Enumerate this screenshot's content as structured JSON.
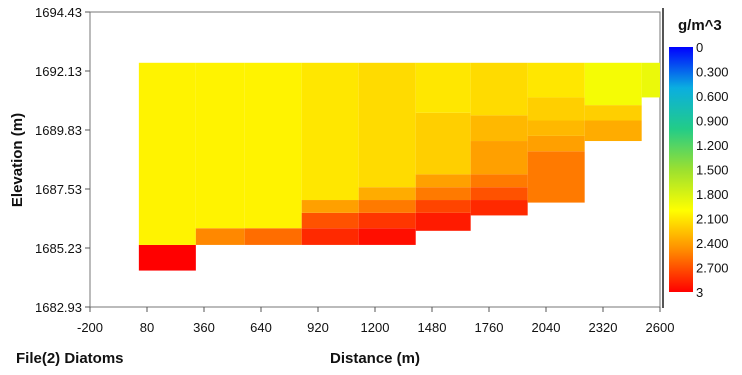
{
  "chart_data": {
    "type": "heatmap",
    "title": "",
    "xlabel": "Distance (m)",
    "ylabel": "Elevation (m)",
    "footer_label": "File(2) Diatoms",
    "xlim": [
      -200,
      2600
    ],
    "ylim": [
      1682.93,
      1694.43
    ],
    "x_ticks": [
      "-200",
      "80",
      "360",
      "640",
      "920",
      "1200",
      "1480",
      "1760",
      "2040",
      "2320",
      "2600"
    ],
    "y_ticks": [
      "1682.93",
      "1685.23",
      "1687.53",
      "1689.83",
      "1692.13",
      "1694.43"
    ],
    "colorbar": {
      "title": "g/m^3",
      "range": [
        0,
        3
      ],
      "ticks": [
        "0",
        "0.300",
        "0.600",
        "0.900",
        "1.200",
        "1.500",
        "1.800",
        "2.100",
        "2.400",
        "2.700",
        "3"
      ]
    },
    "cells": [
      {
        "x": [
          40,
          320
        ],
        "y": [
          1684.35,
          1685.35
        ],
        "value": 3.0
      },
      {
        "x": [
          40,
          320
        ],
        "y": [
          1685.35,
          1692.45
        ],
        "value": 2.05
      },
      {
        "x": [
          320,
          560
        ],
        "y": [
          1685.35,
          1686.0
        ],
        "value": 2.5
      },
      {
        "x": [
          320,
          560
        ],
        "y": [
          1686.0,
          1692.45
        ],
        "value": 2.05
      },
      {
        "x": [
          560,
          840
        ],
        "y": [
          1685.35,
          1686.0
        ],
        "value": 2.6
      },
      {
        "x": [
          560,
          840
        ],
        "y": [
          1686.0,
          1692.45
        ],
        "value": 2.05
      },
      {
        "x": [
          840,
          1120
        ],
        "y": [
          1685.35,
          1686.0
        ],
        "value": 2.85
      },
      {
        "x": [
          840,
          1120
        ],
        "y": [
          1686.0,
          1686.6
        ],
        "value": 2.7
      },
      {
        "x": [
          840,
          1120
        ],
        "y": [
          1686.6,
          1687.1
        ],
        "value": 2.4
      },
      {
        "x": [
          840,
          1120
        ],
        "y": [
          1687.1,
          1692.45
        ],
        "value": 2.1
      },
      {
        "x": [
          1120,
          1400
        ],
        "y": [
          1685.35,
          1686.0
        ],
        "value": 2.95
      },
      {
        "x": [
          1120,
          1400
        ],
        "y": [
          1686.0,
          1686.6
        ],
        "value": 2.8
      },
      {
        "x": [
          1120,
          1400
        ],
        "y": [
          1686.6,
          1687.1
        ],
        "value": 2.55
      },
      {
        "x": [
          1120,
          1400
        ],
        "y": [
          1687.1,
          1687.6
        ],
        "value": 2.35
      },
      {
        "x": [
          1120,
          1400
        ],
        "y": [
          1687.6,
          1692.45
        ],
        "value": 2.15
      },
      {
        "x": [
          1400,
          1670
        ],
        "y": [
          1685.9,
          1686.6
        ],
        "value": 2.9
      },
      {
        "x": [
          1400,
          1670
        ],
        "y": [
          1686.6,
          1687.1
        ],
        "value": 2.75
      },
      {
        "x": [
          1400,
          1670
        ],
        "y": [
          1687.1,
          1687.6
        ],
        "value": 2.55
      },
      {
        "x": [
          1400,
          1670
        ],
        "y": [
          1687.6,
          1688.1
        ],
        "value": 2.4
      },
      {
        "x": [
          1400,
          1670
        ],
        "y": [
          1688.1,
          1690.5
        ],
        "value": 2.2
      },
      {
        "x": [
          1400,
          1670
        ],
        "y": [
          1690.5,
          1692.45
        ],
        "value": 2.1
      },
      {
        "x": [
          1670,
          1950
        ],
        "y": [
          1686.5,
          1687.1
        ],
        "value": 2.85
      },
      {
        "x": [
          1670,
          1950
        ],
        "y": [
          1687.1,
          1687.6
        ],
        "value": 2.7
      },
      {
        "x": [
          1670,
          1950
        ],
        "y": [
          1687.6,
          1688.1
        ],
        "value": 2.55
      },
      {
        "x": [
          1670,
          1950
        ],
        "y": [
          1688.1,
          1689.4
        ],
        "value": 2.4
      },
      {
        "x": [
          1670,
          1950
        ],
        "y": [
          1689.4,
          1690.4
        ],
        "value": 2.3
      },
      {
        "x": [
          1670,
          1950
        ],
        "y": [
          1690.4,
          1692.45
        ],
        "value": 2.15
      },
      {
        "x": [
          1950,
          2230
        ],
        "y": [
          1687.0,
          1689.0
        ],
        "value": 2.55
      },
      {
        "x": [
          1950,
          2230
        ],
        "y": [
          1689.0,
          1689.6
        ],
        "value": 2.4
      },
      {
        "x": [
          1950,
          2230
        ],
        "y": [
          1689.6,
          1690.2
        ],
        "value": 2.3
      },
      {
        "x": [
          1950,
          2230
        ],
        "y": [
          1690.2,
          1691.1
        ],
        "value": 2.2
      },
      {
        "x": [
          1950,
          2230
        ],
        "y": [
          1691.1,
          1692.45
        ],
        "value": 2.1
      },
      {
        "x": [
          2230,
          2510
        ],
        "y": [
          1689.4,
          1690.2
        ],
        "value": 2.35
      },
      {
        "x": [
          2230,
          2510
        ],
        "y": [
          1690.2,
          1690.8
        ],
        "value": 2.2
      },
      {
        "x": [
          2230,
          2510
        ],
        "y": [
          1690.8,
          1692.45
        ],
        "value": 1.95
      },
      {
        "x": [
          2510,
          2790
        ],
        "y": [
          1691.1,
          1692.45
        ],
        "value": 1.9
      }
    ]
  },
  "colors": {
    "axis": "#555555",
    "text": "#111111",
    "gradient": [
      "#0000ff",
      "#0aaee0",
      "#22cc88",
      "#9be030",
      "#ffff00",
      "#ff8800",
      "#ff0000"
    ]
  }
}
